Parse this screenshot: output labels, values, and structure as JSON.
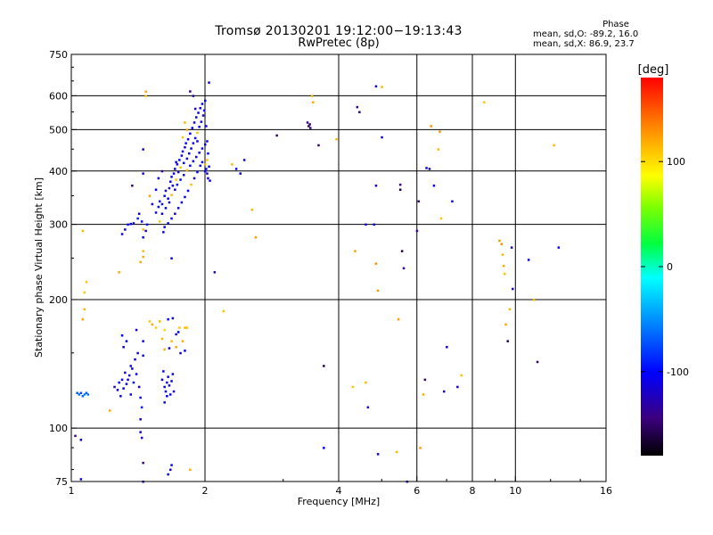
{
  "header": {
    "title": "Tromsø 20130201 19:12:00−19:13:43",
    "subtitle": "RwPretec (8p)"
  },
  "phase_stats": {
    "heading": "Phase",
    "line1": "mean, sd,O: -89.2, 16.0",
    "line2": "mean, sd,X:  86.9, 23.7"
  },
  "colorbar": {
    "label": "[deg]",
    "ticks": [
      "100",
      "0",
      "-100"
    ],
    "tick_values": [
      100,
      0,
      -100
    ],
    "range": [
      -180,
      180
    ]
  },
  "chart_data": {
    "type": "scatter",
    "title": "Tromsø 20130201 19:12:00−19:13:43",
    "subtitle": "RwPretec (8p)",
    "xlabel": "Frequency [MHz]",
    "ylabel": "Stationary phase Virtual Height [km]",
    "x_scale": "log",
    "y_scale": "log",
    "xlim": [
      1,
      16
    ],
    "ylim": [
      75,
      750
    ],
    "x_ticks": [
      1,
      2,
      4,
      6,
      8,
      10,
      16
    ],
    "x_tick_labels": [
      "1",
      "2",
      "4",
      "6",
      "8",
      "10",
      "16"
    ],
    "y_ticks": [
      75,
      100,
      200,
      300,
      400,
      500,
      600,
      750
    ],
    "y_tick_labels": [
      "75",
      "100",
      "200",
      "300",
      "400",
      "500",
      "600",
      "750"
    ],
    "grid": true,
    "color_encodes": "phase [deg]",
    "points": [
      [
        1.02,
        96,
        -140
      ],
      [
        1.05,
        94,
        -115
      ],
      [
        1.05,
        76,
        -110
      ],
      [
        1.06,
        180,
        120
      ],
      [
        1.07,
        190,
        115
      ],
      [
        1.07,
        208,
        110
      ],
      [
        1.08,
        220,
        110
      ],
      [
        1.06,
        290,
        115
      ],
      [
        1.03,
        121,
        -70
      ],
      [
        1.04,
        120,
        -60
      ],
      [
        1.05,
        121,
        -75
      ],
      [
        1.06,
        119,
        -65
      ],
      [
        1.07,
        120,
        -55
      ],
      [
        1.08,
        121,
        -70
      ],
      [
        1.09,
        120,
        -60
      ],
      [
        1.28,
        232,
        120
      ],
      [
        1.3,
        165,
        -100
      ],
      [
        1.31,
        155,
        -110
      ],
      [
        1.33,
        160,
        -105
      ],
      [
        1.4,
        170,
        -120
      ],
      [
        1.25,
        125,
        -120
      ],
      [
        1.27,
        123,
        -110
      ],
      [
        1.28,
        128,
        -100
      ],
      [
        1.3,
        130,
        -110
      ],
      [
        1.32,
        135,
        -105
      ],
      [
        1.33,
        127,
        -100
      ],
      [
        1.35,
        133,
        -115
      ],
      [
        1.36,
        140,
        -110
      ],
      [
        1.37,
        138,
        -100
      ],
      [
        1.38,
        128,
        -95
      ],
      [
        1.39,
        145,
        -110
      ],
      [
        1.4,
        134,
        -100
      ],
      [
        1.41,
        150,
        -110
      ],
      [
        1.42,
        125,
        -115
      ],
      [
        1.43,
        118,
        -105
      ],
      [
        1.44,
        112,
        -90
      ],
      [
        1.36,
        120,
        -105
      ],
      [
        1.29,
        119,
        -110
      ],
      [
        1.31,
        124,
        -100
      ],
      [
        1.34,
        130,
        -108
      ],
      [
        1.45,
        160,
        -100
      ],
      [
        1.45,
        148,
        -110
      ],
      [
        1.43,
        105,
        -120
      ],
      [
        1.43,
        98,
        -110
      ],
      [
        1.44,
        95,
        -120
      ],
      [
        1.45,
        83,
        -140
      ],
      [
        1.45,
        75,
        -110
      ],
      [
        1.22,
        110,
        120
      ],
      [
        1.3,
        285,
        -110
      ],
      [
        1.32,
        292,
        -110
      ],
      [
        1.34,
        300,
        -100
      ],
      [
        1.36,
        301,
        -115
      ],
      [
        1.38,
        302,
        -105
      ],
      [
        1.41,
        310,
        -90
      ],
      [
        1.42,
        318,
        -110
      ],
      [
        1.44,
        305,
        -100
      ],
      [
        1.45,
        292,
        115
      ],
      [
        1.45,
        280,
        -110
      ],
      [
        1.47,
        290,
        -115
      ],
      [
        1.48,
        300,
        -95
      ],
      [
        1.43,
        245,
        120
      ],
      [
        1.45,
        252,
        120
      ],
      [
        1.45,
        260,
        115
      ],
      [
        1.47,
        600,
        110
      ],
      [
        1.47,
        614,
        120
      ],
      [
        1.45,
        450,
        -120
      ],
      [
        1.45,
        395,
        -110
      ],
      [
        1.37,
        370,
        -140
      ],
      [
        1.5,
        178,
        110
      ],
      [
        1.52,
        175,
        120
      ],
      [
        1.55,
        172,
        105
      ],
      [
        1.58,
        178,
        115
      ],
      [
        1.62,
        170,
        105
      ],
      [
        1.65,
        180,
        -100
      ],
      [
        1.69,
        181,
        -110
      ],
      [
        1.72,
        166,
        -115
      ],
      [
        1.75,
        172,
        110
      ],
      [
        1.78,
        160,
        120
      ],
      [
        1.8,
        172,
        115
      ],
      [
        1.82,
        172,
        110
      ],
      [
        1.74,
        168,
        -100
      ],
      [
        1.68,
        160,
        115
      ],
      [
        1.72,
        155,
        120
      ],
      [
        1.76,
        150,
        -110
      ],
      [
        1.8,
        152,
        -100
      ],
      [
        1.66,
        154,
        -110
      ],
      [
        1.62,
        153,
        120
      ],
      [
        1.6,
        162,
        115
      ],
      [
        1.6,
        130,
        -110
      ],
      [
        1.62,
        125,
        -100
      ],
      [
        1.63,
        122,
        -95
      ],
      [
        1.64,
        128,
        -110
      ],
      [
        1.65,
        132,
        -105
      ],
      [
        1.66,
        126,
        -115
      ],
      [
        1.67,
        120,
        -100
      ],
      [
        1.68,
        129,
        -100
      ],
      [
        1.69,
        134,
        -110
      ],
      [
        1.7,
        122,
        -120
      ],
      [
        1.62,
        115,
        -110
      ],
      [
        1.64,
        119,
        -100
      ],
      [
        1.61,
        136,
        -105
      ],
      [
        1.65,
        78,
        -110
      ],
      [
        1.67,
        80,
        -120
      ],
      [
        1.68,
        82,
        -100
      ],
      [
        1.85,
        80,
        120
      ],
      [
        1.61,
        288,
        -110
      ],
      [
        1.55,
        320,
        -110
      ],
      [
        1.57,
        330,
        -100
      ],
      [
        1.58,
        340,
        -110
      ],
      [
        1.6,
        335,
        -95
      ],
      [
        1.62,
        350,
        -105
      ],
      [
        1.63,
        360,
        -110
      ],
      [
        1.65,
        345,
        -100
      ],
      [
        1.66,
        365,
        -120
      ],
      [
        1.67,
        378,
        -110
      ],
      [
        1.68,
        388,
        -105
      ],
      [
        1.69,
        370,
        -100
      ],
      [
        1.7,
        395,
        -110
      ],
      [
        1.71,
        405,
        -100
      ],
      [
        1.72,
        382,
        110
      ],
      [
        1.73,
        415,
        -105
      ],
      [
        1.74,
        398,
        -110
      ],
      [
        1.75,
        425,
        -100
      ],
      [
        1.76,
        408,
        110
      ],
      [
        1.77,
        435,
        -110
      ],
      [
        1.78,
        445,
        -105
      ],
      [
        1.79,
        418,
        -100
      ],
      [
        1.8,
        455,
        -110
      ],
      [
        1.81,
        465,
        -100
      ],
      [
        1.82,
        428,
        -105
      ],
      [
        1.83,
        475,
        -110
      ],
      [
        1.84,
        440,
        -100
      ],
      [
        1.85,
        490,
        -110
      ],
      [
        1.86,
        452,
        -105
      ],
      [
        1.87,
        505,
        -100
      ],
      [
        1.88,
        465,
        -110
      ],
      [
        1.89,
        520,
        -105
      ],
      [
        1.9,
        478,
        -100
      ],
      [
        1.91,
        535,
        -110
      ],
      [
        1.92,
        492,
        110
      ],
      [
        1.93,
        548,
        -105
      ],
      [
        1.94,
        508,
        -100
      ],
      [
        1.95,
        562,
        -110
      ],
      [
        1.96,
        522,
        -105
      ],
      [
        1.97,
        575,
        -100
      ],
      [
        1.98,
        540,
        -110
      ],
      [
        1.99,
        555,
        -105
      ],
      [
        2.0,
        585,
        -100
      ],
      [
        2.01,
        510,
        -110
      ],
      [
        2.02,
        470,
        -105
      ],
      [
        2.03,
        440,
        -100
      ],
      [
        2.04,
        410,
        -110
      ],
      [
        2.02,
        395,
        -120
      ],
      [
        2.03,
        385,
        -110
      ],
      [
        1.58,
        305,
        110
      ],
      [
        1.6,
        318,
        -110
      ],
      [
        1.63,
        328,
        -100
      ],
      [
        1.66,
        338,
        -110
      ],
      [
        1.68,
        352,
        115
      ],
      [
        1.71,
        362,
        -105
      ],
      [
        1.73,
        372,
        -110
      ],
      [
        1.76,
        382,
        -100
      ],
      [
        1.79,
        392,
        -110
      ],
      [
        1.82,
        402,
        115
      ],
      [
        1.85,
        412,
        -105
      ],
      [
        1.88,
        422,
        -110
      ],
      [
        1.91,
        432,
        -100
      ],
      [
        1.94,
        442,
        -110
      ],
      [
        1.97,
        452,
        -105
      ],
      [
        2.0,
        462,
        -100
      ],
      [
        1.95,
        412,
        -110
      ],
      [
        1.92,
        398,
        -100
      ],
      [
        1.89,
        385,
        -110
      ],
      [
        1.86,
        372,
        110
      ],
      [
        1.83,
        360,
        -100
      ],
      [
        1.8,
        348,
        -105
      ],
      [
        1.77,
        338,
        -110
      ],
      [
        1.74,
        328,
        -100
      ],
      [
        1.71,
        318,
        -110
      ],
      [
        1.68,
        310,
        -100
      ],
      [
        1.65,
        302,
        -110
      ],
      [
        1.62,
        296,
        -105
      ],
      [
        1.85,
        615,
        -140
      ],
      [
        1.88,
        600,
        -130
      ],
      [
        1.9,
        560,
        -120
      ],
      [
        1.92,
        470,
        -110
      ],
      [
        1.97,
        420,
        -110
      ],
      [
        2.0,
        400,
        -100
      ],
      [
        2.05,
        380,
        -110
      ],
      [
        2.04,
        645,
        -110
      ],
      [
        1.8,
        520,
        115
      ],
      [
        1.82,
        500,
        120
      ],
      [
        1.78,
        480,
        110
      ],
      [
        1.68,
        250,
        -110
      ],
      [
        1.72,
        420,
        -110
      ],
      [
        1.52,
        335,
        -110
      ],
      [
        1.55,
        362,
        -100
      ],
      [
        1.57,
        385,
        -110
      ],
      [
        1.5,
        350,
        120
      ],
      [
        1.6,
        400,
        -140
      ],
      [
        2.0,
        415,
        115
      ],
      [
        2.02,
        425,
        110
      ],
      [
        2.01,
        405,
        -110
      ],
      [
        2.1,
        232,
        -130
      ],
      [
        2.2,
        188,
        110
      ],
      [
        2.3,
        415,
        115
      ],
      [
        2.35,
        405,
        -110
      ],
      [
        2.4,
        395,
        -110
      ],
      [
        2.45,
        425,
        -110
      ],
      [
        2.55,
        325,
        115
      ],
      [
        2.6,
        280,
        125
      ],
      [
        2.9,
        485,
        -150
      ],
      [
        3.4,
        520,
        -140
      ],
      [
        3.42,
        510,
        -150
      ],
      [
        3.44,
        515,
        -150
      ],
      [
        3.45,
        505,
        -140
      ],
      [
        3.48,
        600,
        115
      ],
      [
        3.5,
        580,
        120
      ],
      [
        3.6,
        460,
        -150
      ],
      [
        3.7,
        140,
        -160
      ],
      [
        3.7,
        90,
        -100
      ],
      [
        3.95,
        475,
        115
      ],
      [
        4.3,
        125,
        110
      ],
      [
        4.35,
        260,
        125
      ],
      [
        4.4,
        565,
        -140
      ],
      [
        4.45,
        550,
        -140
      ],
      [
        4.6,
        300,
        -110
      ],
      [
        4.6,
        128,
        115
      ],
      [
        4.65,
        112,
        -120
      ],
      [
        4.8,
        300,
        -110
      ],
      [
        4.85,
        243,
        130
      ],
      [
        4.85,
        370,
        -110
      ],
      [
        4.85,
        632,
        -110
      ],
      [
        4.9,
        210,
        125
      ],
      [
        4.9,
        87,
        -110
      ],
      [
        5.0,
        480,
        -110
      ],
      [
        5.0,
        630,
        115
      ],
      [
        5.4,
        88,
        115
      ],
      [
        5.45,
        180,
        125
      ],
      [
        5.5,
        372,
        -140
      ],
      [
        5.5,
        362,
        -160
      ],
      [
        5.55,
        260,
        -160
      ],
      [
        5.6,
        237,
        -140
      ],
      [
        5.7,
        75,
        -120
      ],
      [
        6.0,
        290,
        -140
      ],
      [
        6.05,
        340,
        -150
      ],
      [
        6.1,
        90,
        125
      ],
      [
        6.2,
        120,
        120
      ],
      [
        6.25,
        130,
        -150
      ],
      [
        6.3,
        407,
        -110
      ],
      [
        6.4,
        405,
        -110
      ],
      [
        6.45,
        510,
        130
      ],
      [
        6.55,
        370,
        -110
      ],
      [
        6.7,
        450,
        115
      ],
      [
        6.75,
        495,
        130
      ],
      [
        6.8,
        310,
        110
      ],
      [
        6.9,
        122,
        -110
      ],
      [
        7.0,
        155,
        -110
      ],
      [
        7.2,
        340,
        -110
      ],
      [
        7.4,
        125,
        -120
      ],
      [
        7.55,
        133,
        110
      ],
      [
        8.5,
        580,
        110
      ],
      [
        9.2,
        275,
        130
      ],
      [
        9.3,
        270,
        130
      ],
      [
        9.35,
        255,
        115
      ],
      [
        9.4,
        240,
        120
      ],
      [
        9.45,
        230,
        110
      ],
      [
        9.5,
        175,
        120
      ],
      [
        9.6,
        160,
        -160
      ],
      [
        9.7,
        190,
        115
      ],
      [
        9.8,
        265,
        -120
      ],
      [
        9.85,
        212,
        -130
      ],
      [
        10.7,
        248,
        -110
      ],
      [
        11.0,
        200,
        115
      ],
      [
        11.2,
        143,
        -150
      ],
      [
        12.2,
        460,
        115
      ],
      [
        12.5,
        265,
        -110
      ]
    ]
  }
}
